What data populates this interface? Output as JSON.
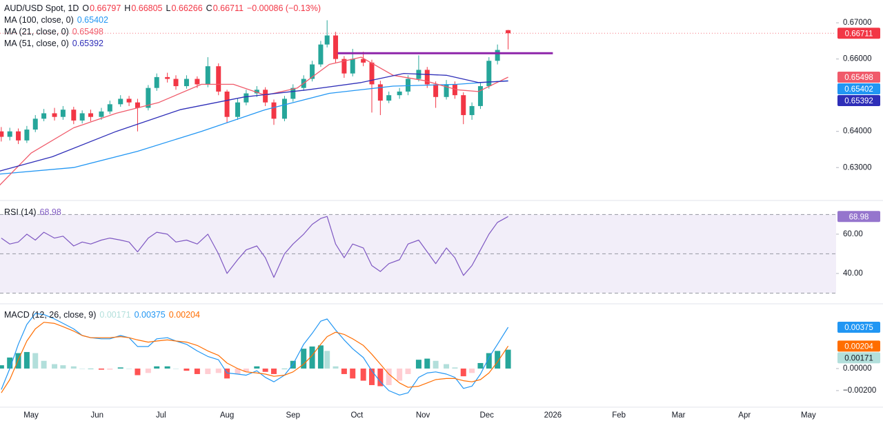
{
  "chart_data": [
    {
      "type": "candlestick",
      "title": "AUD/USD Spot, 1D",
      "ohlc_labels": [
        "O",
        "H",
        "L",
        "C"
      ],
      "change": "−0.00086 (−0.13%)",
      "up_color": "#26a69a",
      "down_color": "#f23645",
      "x": [
        -14,
        -10,
        -6,
        -2,
        2,
        6,
        11,
        15,
        20,
        24,
        28,
        33,
        37,
        42,
        46,
        50,
        55,
        59,
        64,
        68,
        73,
        78,
        83,
        88,
        92,
        97,
        101,
        106,
        110,
        114,
        119,
        123,
        128,
        132,
        136,
        139,
        143,
        147,
        151,
        156,
        160,
        164,
        168,
        173,
        177,
        182,
        186,
        190,
        195,
        199,
        203,
        207,
        211,
        215,
        219,
        224
      ],
      "open": [
        0.64,
        0.6385,
        0.64,
        0.6375,
        0.6405,
        0.6435,
        0.645,
        0.644,
        0.646,
        0.643,
        0.645,
        0.644,
        0.6455,
        0.6475,
        0.649,
        0.648,
        0.6465,
        0.652,
        0.655,
        0.6545,
        0.6525,
        0.6545,
        0.653,
        0.658,
        0.651,
        0.644,
        0.648,
        0.6505,
        0.6515,
        0.648,
        0.6435,
        0.649,
        0.652,
        0.6545,
        0.6585,
        0.664,
        0.6665,
        0.66,
        0.656,
        0.66,
        0.659,
        0.653,
        0.6485,
        0.65,
        0.651,
        0.6545,
        0.657,
        0.653,
        0.6495,
        0.653,
        0.65,
        0.6445,
        0.647,
        0.6525,
        0.6595,
        0.66797
      ],
      "high": [
        0.6412,
        0.641,
        0.6408,
        0.6415,
        0.6445,
        0.6462,
        0.6465,
        0.647,
        0.6468,
        0.6458,
        0.646,
        0.6465,
        0.6485,
        0.65,
        0.6498,
        0.649,
        0.6528,
        0.656,
        0.6562,
        0.6555,
        0.6555,
        0.6552,
        0.6605,
        0.6588,
        0.6515,
        0.649,
        0.6515,
        0.6525,
        0.6522,
        0.6488,
        0.6498,
        0.653,
        0.6555,
        0.6595,
        0.665,
        0.6707,
        0.6675,
        0.6608,
        0.6628,
        0.662,
        0.6598,
        0.654,
        0.651,
        0.652,
        0.6555,
        0.661,
        0.6578,
        0.6538,
        0.6542,
        0.6538,
        0.6508,
        0.648,
        0.6535,
        0.6605,
        0.664,
        0.66805
      ],
      "low": [
        0.6372,
        0.6375,
        0.6365,
        0.6368,
        0.6398,
        0.6428,
        0.643,
        0.6432,
        0.642,
        0.6422,
        0.6428,
        0.6432,
        0.6448,
        0.6468,
        0.647,
        0.64,
        0.6458,
        0.6512,
        0.6535,
        0.6515,
        0.6518,
        0.652,
        0.6522,
        0.65,
        0.6425,
        0.6432,
        0.6472,
        0.6495,
        0.647,
        0.6418,
        0.6428,
        0.6482,
        0.6512,
        0.6538,
        0.6578,
        0.6632,
        0.659,
        0.6548,
        0.6552,
        0.658,
        0.6452,
        0.6445,
        0.6478,
        0.649,
        0.65,
        0.6538,
        0.652,
        0.6465,
        0.6488,
        0.649,
        0.642,
        0.6432,
        0.6462,
        0.6518,
        0.6585,
        0.66266
      ],
      "close": [
        0.6385,
        0.64,
        0.6375,
        0.6405,
        0.6435,
        0.645,
        0.644,
        0.646,
        0.643,
        0.645,
        0.644,
        0.6455,
        0.6475,
        0.649,
        0.648,
        0.6465,
        0.652,
        0.655,
        0.6545,
        0.6525,
        0.6545,
        0.653,
        0.658,
        0.651,
        0.644,
        0.648,
        0.6505,
        0.6515,
        0.648,
        0.6435,
        0.649,
        0.652,
        0.6545,
        0.6585,
        0.664,
        0.6665,
        0.66,
        0.656,
        0.66,
        0.659,
        0.653,
        0.6485,
        0.65,
        0.651,
        0.6545,
        0.657,
        0.653,
        0.6495,
        0.653,
        0.65,
        0.6445,
        0.647,
        0.6525,
        0.6595,
        0.6625,
        0.66711
      ],
      "series": [
        {
          "name": "MA (100, close, 0)",
          "color": "#2196f3",
          "x": [
            -15,
            20,
            50,
            80,
            110,
            140,
            170,
            200,
            224
          ],
          "values": [
            0.6282,
            0.63,
            0.6345,
            0.64,
            0.646,
            0.6505,
            0.6525,
            0.653,
            0.65402
          ]
        },
        {
          "name": "MA (21, close, 0)",
          "color": "#f05a6a",
          "x": [
            -15,
            0,
            20,
            40,
            60,
            80,
            95,
            110,
            125,
            140,
            155,
            170,
            185,
            200,
            210,
            224
          ],
          "values": [
            0.625,
            0.634,
            0.641,
            0.645,
            0.648,
            0.653,
            0.653,
            0.65,
            0.652,
            0.6585,
            0.6605,
            0.6555,
            0.654,
            0.6515,
            0.651,
            0.65498
          ]
        },
        {
          "name": "MA (51, close, 0)",
          "color": "#2e2eb8",
          "x": [
            -15,
            10,
            40,
            70,
            100,
            130,
            155,
            175,
            195,
            210,
            224
          ],
          "values": [
            0.629,
            0.633,
            0.64,
            0.646,
            0.6495,
            0.6515,
            0.6535,
            0.656,
            0.6555,
            0.6535,
            0.65392
          ]
        }
      ],
      "level": {
        "value": 0.6616,
        "x": [
          144,
          245
        ],
        "color": "#8e24aa"
      },
      "ylim": [
        0.6211,
        0.6763
      ],
      "yticks": [
        {
          "value": 0.63,
          "label": "0.63000"
        },
        {
          "value": 0.64,
          "label": "0.64000"
        },
        {
          "value": 0.66,
          "label": "0.66000"
        },
        {
          "value": 0.67,
          "label": "0.67000"
        }
      ],
      "xlim": [
        -14.6,
        378
      ],
      "xticks": [
        {
          "value": 0,
          "label": "May"
        },
        {
          "value": 31,
          "label": "Jun"
        },
        {
          "value": 61,
          "label": "Jul"
        },
        {
          "value": 92,
          "label": "Aug"
        },
        {
          "value": 123,
          "label": "Sep"
        },
        {
          "value": 153,
          "label": "Oct"
        },
        {
          "value": 184,
          "label": "Nov"
        },
        {
          "value": 214,
          "label": "Dec"
        },
        {
          "value": 245,
          "label": "2026"
        },
        {
          "value": 276,
          "label": "Feb"
        },
        {
          "value": 304,
          "label": "Mar"
        },
        {
          "value": 335,
          "label": "Apr"
        },
        {
          "value": 365,
          "label": "May"
        }
      ]
    },
    {
      "type": "line",
      "title": "RSI (14)",
      "series": [
        {
          "color": "#7e57c2",
          "values": [
            58,
            55,
            56,
            60,
            57,
            61,
            58,
            59,
            54,
            56,
            55,
            57,
            58,
            57,
            56,
            51,
            58,
            61,
            60,
            56,
            57,
            55,
            60,
            50,
            40,
            47,
            52,
            54,
            48,
            38,
            50,
            55,
            60,
            65,
            68,
            69,
            55,
            48,
            55,
            53,
            44,
            41,
            45,
            47,
            55,
            57,
            51,
            45,
            53,
            48,
            39,
            44,
            52,
            60,
            66,
            68.98
          ]
        }
      ],
      "levels": [
        30,
        50,
        70
      ],
      "band": [
        30,
        70
      ],
      "band_color": "rgba(126,87,194,0.1)",
      "ylim": [
        24.9,
        76.8
      ],
      "yticks": [
        {
          "value": 40,
          "label": "40.00"
        },
        {
          "value": 60,
          "label": "60.00"
        }
      ]
    },
    {
      "type": "macd",
      "title": "MACD (12, 26, close, 9)",
      "series": [
        {
          "kind": "histogram",
          "color": "#b2dfdb",
          "colors": [
            "#26a69a",
            "#b2dfdb",
            "#ffcdd2",
            "#ff5252"
          ],
          "values": [
            0.0003,
            0.001,
            0.0014,
            0.0015,
            0.0014,
            0.0007,
            0.0004,
            0.0003,
            0.0002,
            0,
            0,
            -0.0001,
            -0.0001,
            0.0001,
            0,
            -0.0006,
            -0.0004,
            0.0002,
            0.0002,
            0,
            -0.0002,
            -0.0005,
            -0.0005,
            -0.0004,
            -0.0009,
            -0.0005,
            -0.0003,
            0.0002,
            -0.0003,
            -0.0005,
            0,
            0.0007,
            0.0018,
            0.002,
            0.0021,
            0.0016,
            0.0002,
            -0.0005,
            -0.0009,
            -0.0011,
            -0.0015,
            -0.0016,
            -0.0015,
            -0.0011,
            -0.0005,
            0.0008,
            0.0009,
            0.0007,
            0.0004,
            0.0001,
            -0.0007,
            -0.0004,
            0.0005,
            0.0014,
            0.0016,
            0.00171
          ]
        },
        {
          "kind": "line",
          "color": "#2196f3",
          "values": [
            -0.0019,
            0,
            0.0022,
            0.004,
            0.005,
            0.0049,
            0.0045,
            0.0041,
            0.0036,
            0.003,
            0.0028,
            0.0027,
            0.0027,
            0.003,
            0.0028,
            0.002,
            0.002,
            0.0027,
            0.0028,
            0.0025,
            0.0022,
            0.0016,
            0.0011,
            0.0008,
            -0.0004,
            -0.0005,
            -0.0006,
            -0.0002,
            -0.0008,
            -0.0012,
            -0.0006,
            0.0004,
            0.0022,
            0.0032,
            0.0043,
            0.0045,
            0.0035,
            0.0026,
            0.0018,
            0.001,
            -0.0002,
            -0.0012,
            -0.002,
            -0.0024,
            -0.0022,
            -0.0008,
            -0.0004,
            -0.0003,
            -0.0005,
            -0.0008,
            -0.0018,
            -0.0016,
            -0.0005,
            0.001,
            0.0022,
            0.00375
          ]
        },
        {
          "kind": "line",
          "color": "#ff6d00",
          "values": [
            -0.0022,
            -0.001,
            0.0008,
            0.0025,
            0.0036,
            0.0042,
            0.0041,
            0.0038,
            0.0034,
            0.003,
            0.0028,
            0.0028,
            0.0028,
            0.0029,
            0.0028,
            0.0026,
            0.0024,
            0.0025,
            0.0026,
            0.0025,
            0.0024,
            0.0021,
            0.0016,
            0.0012,
            0.0005,
            0,
            -0.0003,
            -0.0004,
            -0.0005,
            -0.0007,
            -0.0006,
            -0.0003,
            0.0004,
            0.0012,
            0.0022,
            0.0029,
            0.0033,
            0.0031,
            0.0027,
            0.0021,
            0.0013,
            0.0004,
            -0.0005,
            -0.0013,
            -0.0017,
            -0.0016,
            -0.0013,
            -0.001,
            -0.0009,
            -0.0009,
            -0.0011,
            -0.0012,
            -0.001,
            -0.0004,
            0.0006,
            0.00204
          ]
        }
      ],
      "ylim": [
        -0.00344,
        0.00581
      ],
      "yticks": [
        {
          "value": 0,
          "label": "0.00000"
        },
        {
          "value": -0.002,
          "label": "−0.00200"
        }
      ]
    }
  ]
}
